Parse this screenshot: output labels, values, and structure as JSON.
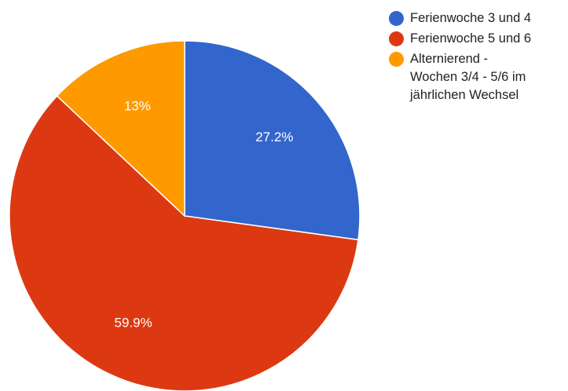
{
  "chart_data": {
    "type": "pie",
    "title": "",
    "slices": [
      {
        "label": "Ferienwoche 3 und 4",
        "value": 27.2,
        "display": "27.2%",
        "color": "#3366cc"
      },
      {
        "label": "Ferienwoche 5 und 6",
        "value": 59.9,
        "display": "59.9%",
        "color": "#dc3912"
      },
      {
        "label": "Alternierend -\nWochen 3/4 - 5/6 im\njährlichen Wechsel",
        "value": 13.0,
        "display": "13%",
        "color": "#ff9900"
      }
    ],
    "legend_position": "right"
  }
}
